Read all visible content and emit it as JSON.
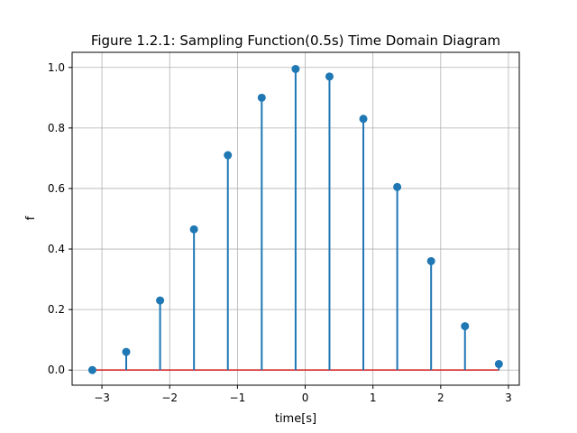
{
  "chart_data": {
    "type": "stem",
    "title": "Figure 1.2.1: Sampling Function(0.5s) Time Domain Diagram",
    "xlabel": "time[s]",
    "ylabel": "f",
    "xlim": [
      -3.44,
      3.16
    ],
    "ylim": [
      -0.05,
      1.05
    ],
    "grid": true,
    "xticks": [
      -3,
      -2,
      -1,
      0,
      1,
      2,
      3
    ],
    "xtick_labels": [
      "−3",
      "−2",
      "−1",
      "0",
      "1",
      "2",
      "3"
    ],
    "yticks": [
      0.0,
      0.2,
      0.4,
      0.6,
      0.8,
      1.0
    ],
    "ytick_labels": [
      "0.0",
      "0.2",
      "0.4",
      "0.6",
      "0.8",
      "1.0"
    ],
    "x": [
      -3.1416,
      -2.6416,
      -2.1416,
      -1.6416,
      -1.1416,
      -0.6416,
      -0.1416,
      0.3584,
      0.8584,
      1.3584,
      1.8584,
      2.3584,
      2.8584
    ],
    "y": [
      0.0,
      0.06,
      0.23,
      0.465,
      0.71,
      0.9,
      0.995,
      0.97,
      0.83,
      0.605,
      0.36,
      0.145,
      0.02
    ],
    "baseline": 0.0,
    "colors": {
      "stem": "#1f77b4",
      "marker": "#1f77b4",
      "baseline": "#d62728",
      "grid": "#b0b0b0"
    }
  }
}
